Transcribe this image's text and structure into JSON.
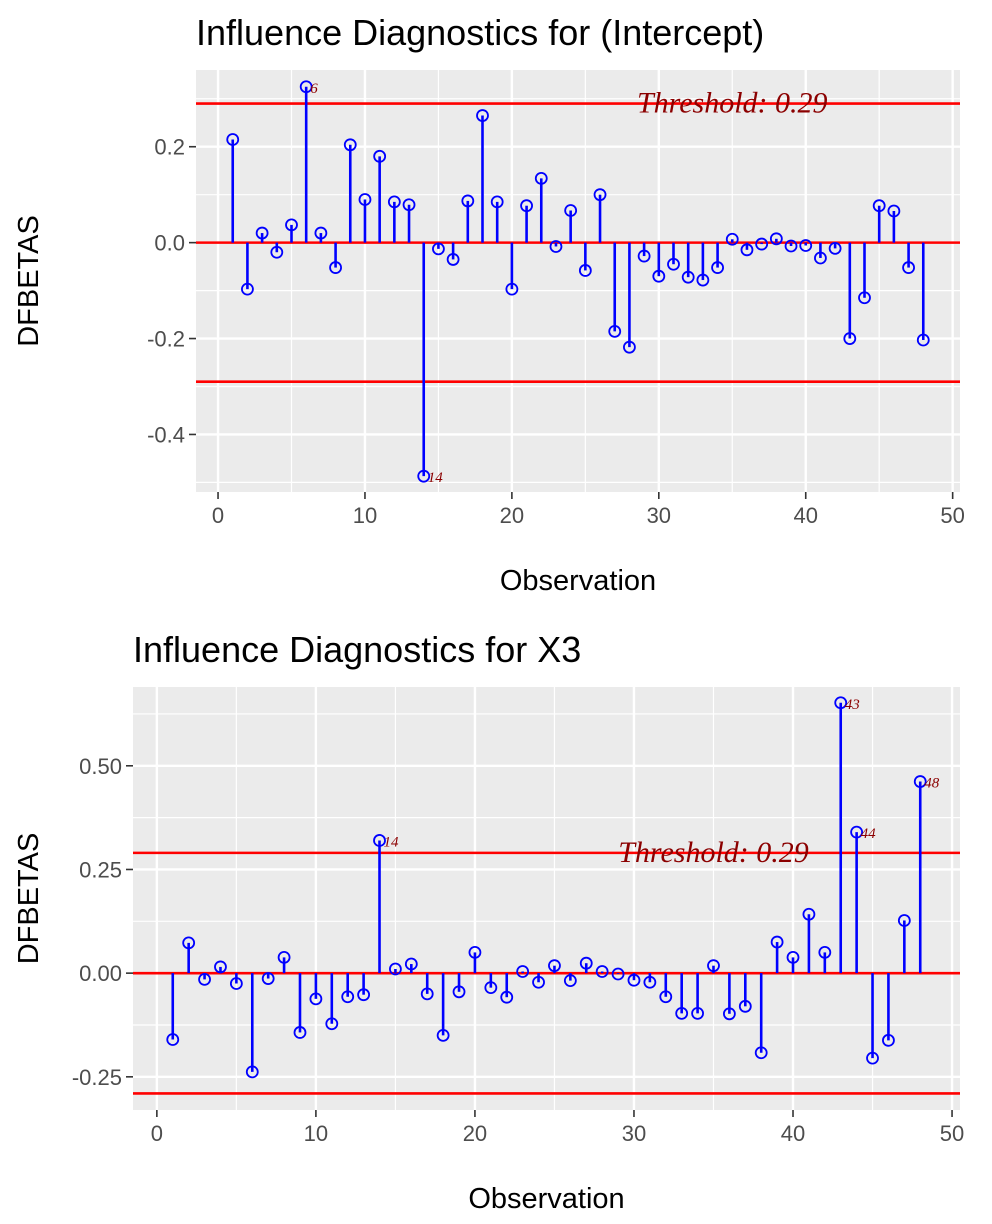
{
  "colors": {
    "panel_bg": "#ebebeb",
    "grid": "#ffffff",
    "stem": "#0000ff",
    "point": "#0000ff",
    "reference_line": "#ff0000",
    "annotation": "#8b0000",
    "tick": "#333333",
    "tick_text": "#4d4d4d"
  },
  "chart_data": [
    {
      "type": "lollipop",
      "title": "Influence Diagnostics for (Intercept)",
      "xlabel": "Observation",
      "ylabel": "DFBETAS",
      "xlim": [
        -1.5,
        50.5
      ],
      "ylim": [
        -0.52,
        0.36
      ],
      "x_ticks": [
        0,
        10,
        20,
        30,
        40,
        50
      ],
      "x_tick_labels": [
        "0",
        "10",
        "20",
        "30",
        "40",
        "50"
      ],
      "y_ticks": [
        -0.4,
        -0.2,
        0.0,
        0.2
      ],
      "y_tick_labels": [
        "-0.4",
        "-0.2",
        "0.0",
        "0.2"
      ],
      "grid": true,
      "threshold": 0.29,
      "threshold_label": "Threshold: 0.29",
      "threshold_label_x": 35,
      "reference_lines": [
        0.29,
        0,
        -0.29
      ],
      "x": [
        1,
        2,
        3,
        4,
        5,
        6,
        7,
        8,
        9,
        10,
        11,
        12,
        13,
        14,
        15,
        16,
        17,
        18,
        19,
        20,
        21,
        22,
        23,
        24,
        25,
        26,
        27,
        28,
        29,
        30,
        31,
        32,
        33,
        34,
        35,
        36,
        37,
        38,
        39,
        40,
        41,
        42,
        43,
        44,
        45,
        46,
        47,
        48
      ],
      "values": [
        0.215,
        -0.097,
        0.02,
        -0.02,
        0.037,
        0.325,
        0.02,
        -0.052,
        0.204,
        0.09,
        0.18,
        0.085,
        0.079,
        -0.487,
        -0.013,
        -0.035,
        0.087,
        0.265,
        0.085,
        -0.097,
        0.077,
        0.134,
        -0.008,
        0.067,
        -0.058,
        0.1,
        -0.185,
        -0.218,
        -0.028,
        -0.07,
        -0.045,
        -0.072,
        -0.078,
        -0.052,
        0.007,
        -0.015,
        -0.003,
        0.008,
        -0.007,
        -0.006,
        -0.032,
        -0.012,
        -0.2,
        -0.115,
        0.077,
        0.066,
        -0.052,
        -0.203
      ],
      "point_labels": [
        {
          "x": 6,
          "y": 0.325,
          "text": "6"
        },
        {
          "x": 14,
          "y": -0.487,
          "text": "14"
        }
      ]
    },
    {
      "type": "lollipop",
      "title": "Influence Diagnostics for X3",
      "xlabel": "Observation",
      "ylabel": "DFBETAS",
      "xlim": [
        -1.5,
        50.5
      ],
      "ylim": [
        -0.33,
        0.69
      ],
      "x_ticks": [
        0,
        10,
        20,
        30,
        40,
        50
      ],
      "x_tick_labels": [
        "0",
        "10",
        "20",
        "30",
        "40",
        "50"
      ],
      "y_ticks": [
        -0.25,
        0.0,
        0.25,
        0.5
      ],
      "y_tick_labels": [
        "-0.25",
        "0.00",
        "0.25",
        "0.50"
      ],
      "grid": true,
      "threshold": 0.29,
      "threshold_label": "Threshold: 0.29",
      "threshold_label_x": 35,
      "reference_lines": [
        0.29,
        0,
        -0.29
      ],
      "x": [
        1,
        2,
        3,
        4,
        5,
        6,
        7,
        8,
        9,
        10,
        11,
        12,
        13,
        14,
        15,
        16,
        17,
        18,
        19,
        20,
        21,
        22,
        23,
        24,
        25,
        26,
        27,
        28,
        29,
        30,
        31,
        32,
        33,
        34,
        35,
        36,
        37,
        38,
        39,
        40,
        41,
        42,
        43,
        44,
        45,
        46,
        47,
        48
      ],
      "values": [
        -0.16,
        0.073,
        -0.015,
        0.015,
        -0.025,
        -0.238,
        -0.013,
        0.038,
        -0.143,
        -0.062,
        -0.122,
        -0.057,
        -0.052,
        0.32,
        0.01,
        0.022,
        -0.05,
        -0.15,
        -0.045,
        0.05,
        -0.035,
        -0.058,
        0.004,
        -0.022,
        0.018,
        -0.018,
        0.024,
        0.004,
        -0.002,
        -0.017,
        -0.022,
        -0.057,
        -0.097,
        -0.097,
        0.018,
        -0.098,
        -0.08,
        -0.192,
        0.075,
        0.038,
        0.142,
        0.05,
        0.652,
        0.34,
        -0.205,
        -0.162,
        0.127,
        0.462
      ],
      "point_labels": [
        {
          "x": 14,
          "y": 0.32,
          "text": "14"
        },
        {
          "x": 43,
          "y": 0.652,
          "text": "43"
        },
        {
          "x": 44,
          "y": 0.34,
          "text": "44"
        },
        {
          "x": 48,
          "y": 0.462,
          "text": "48"
        }
      ]
    }
  ]
}
